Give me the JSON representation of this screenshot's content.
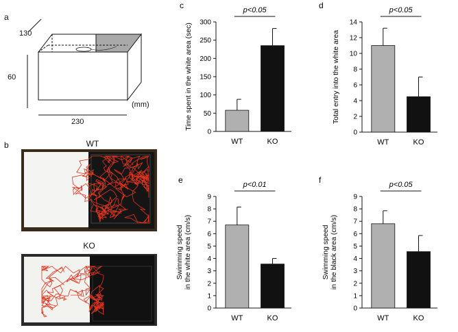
{
  "panels": {
    "a": {
      "letter": "a",
      "dims": {
        "depth": "130",
        "height": "60",
        "width": "230",
        "unit": "(mm)"
      }
    },
    "b": {
      "letter": "b",
      "photos": [
        {
          "label": "WT",
          "white_color": "#f4f4f2",
          "black_color": "#151515",
          "track_color": "#e3341f"
        },
        {
          "label": "KO",
          "white_color": "#f2f2ef",
          "black_color": "#111111",
          "track_color": "#e3341f"
        }
      ]
    }
  },
  "chart_data": [
    {
      "letter": "c",
      "type": "bar",
      "categories": [
        "WT",
        "KO"
      ],
      "values": [
        58,
        235
      ],
      "errors": [
        30,
        47
      ],
      "ylabel": "Time spent in the white area (sec)",
      "ylim": [
        0,
        300
      ],
      "yticks": [
        0,
        50,
        100,
        150,
        200,
        250,
        300
      ],
      "colors": [
        "#b0b0b0",
        "#111111"
      ],
      "significance": "p<0.05"
    },
    {
      "letter": "d",
      "type": "bar",
      "categories": [
        "WT",
        "KO"
      ],
      "values": [
        11,
        4.5
      ],
      "errors": [
        2.2,
        2.5
      ],
      "ylabel": "Total entry into the white area",
      "ylim": [
        0,
        14
      ],
      "yticks": [
        0,
        2,
        4,
        6,
        8,
        10,
        12,
        14
      ],
      "colors": [
        "#b0b0b0",
        "#111111"
      ],
      "significance": "p<0.05"
    },
    {
      "letter": "e",
      "type": "bar",
      "categories": [
        "WT",
        "KO"
      ],
      "values": [
        6.7,
        3.55
      ],
      "errors": [
        1.45,
        0.45
      ],
      "ylabel": [
        "Swimming speed",
        "in the white area (cm/s)"
      ],
      "ylim": [
        0,
        9
      ],
      "yticks": [
        0,
        1,
        2,
        3,
        4,
        5,
        6,
        7,
        8,
        9
      ],
      "colors": [
        "#b0b0b0",
        "#111111"
      ],
      "significance": "p<0.01"
    },
    {
      "letter": "f",
      "type": "bar",
      "categories": [
        "WT",
        "KO"
      ],
      "values": [
        6.8,
        4.55
      ],
      "errors": [
        1.05,
        1.3
      ],
      "ylabel": [
        "Swimming speed",
        "in the black area (cm/s)"
      ],
      "ylim": [
        0,
        9
      ],
      "yticks": [
        0,
        1,
        2,
        3,
        4,
        5,
        6,
        7,
        8,
        9
      ],
      "colors": [
        "#b0b0b0",
        "#111111"
      ],
      "significance": "p<0.05"
    }
  ]
}
